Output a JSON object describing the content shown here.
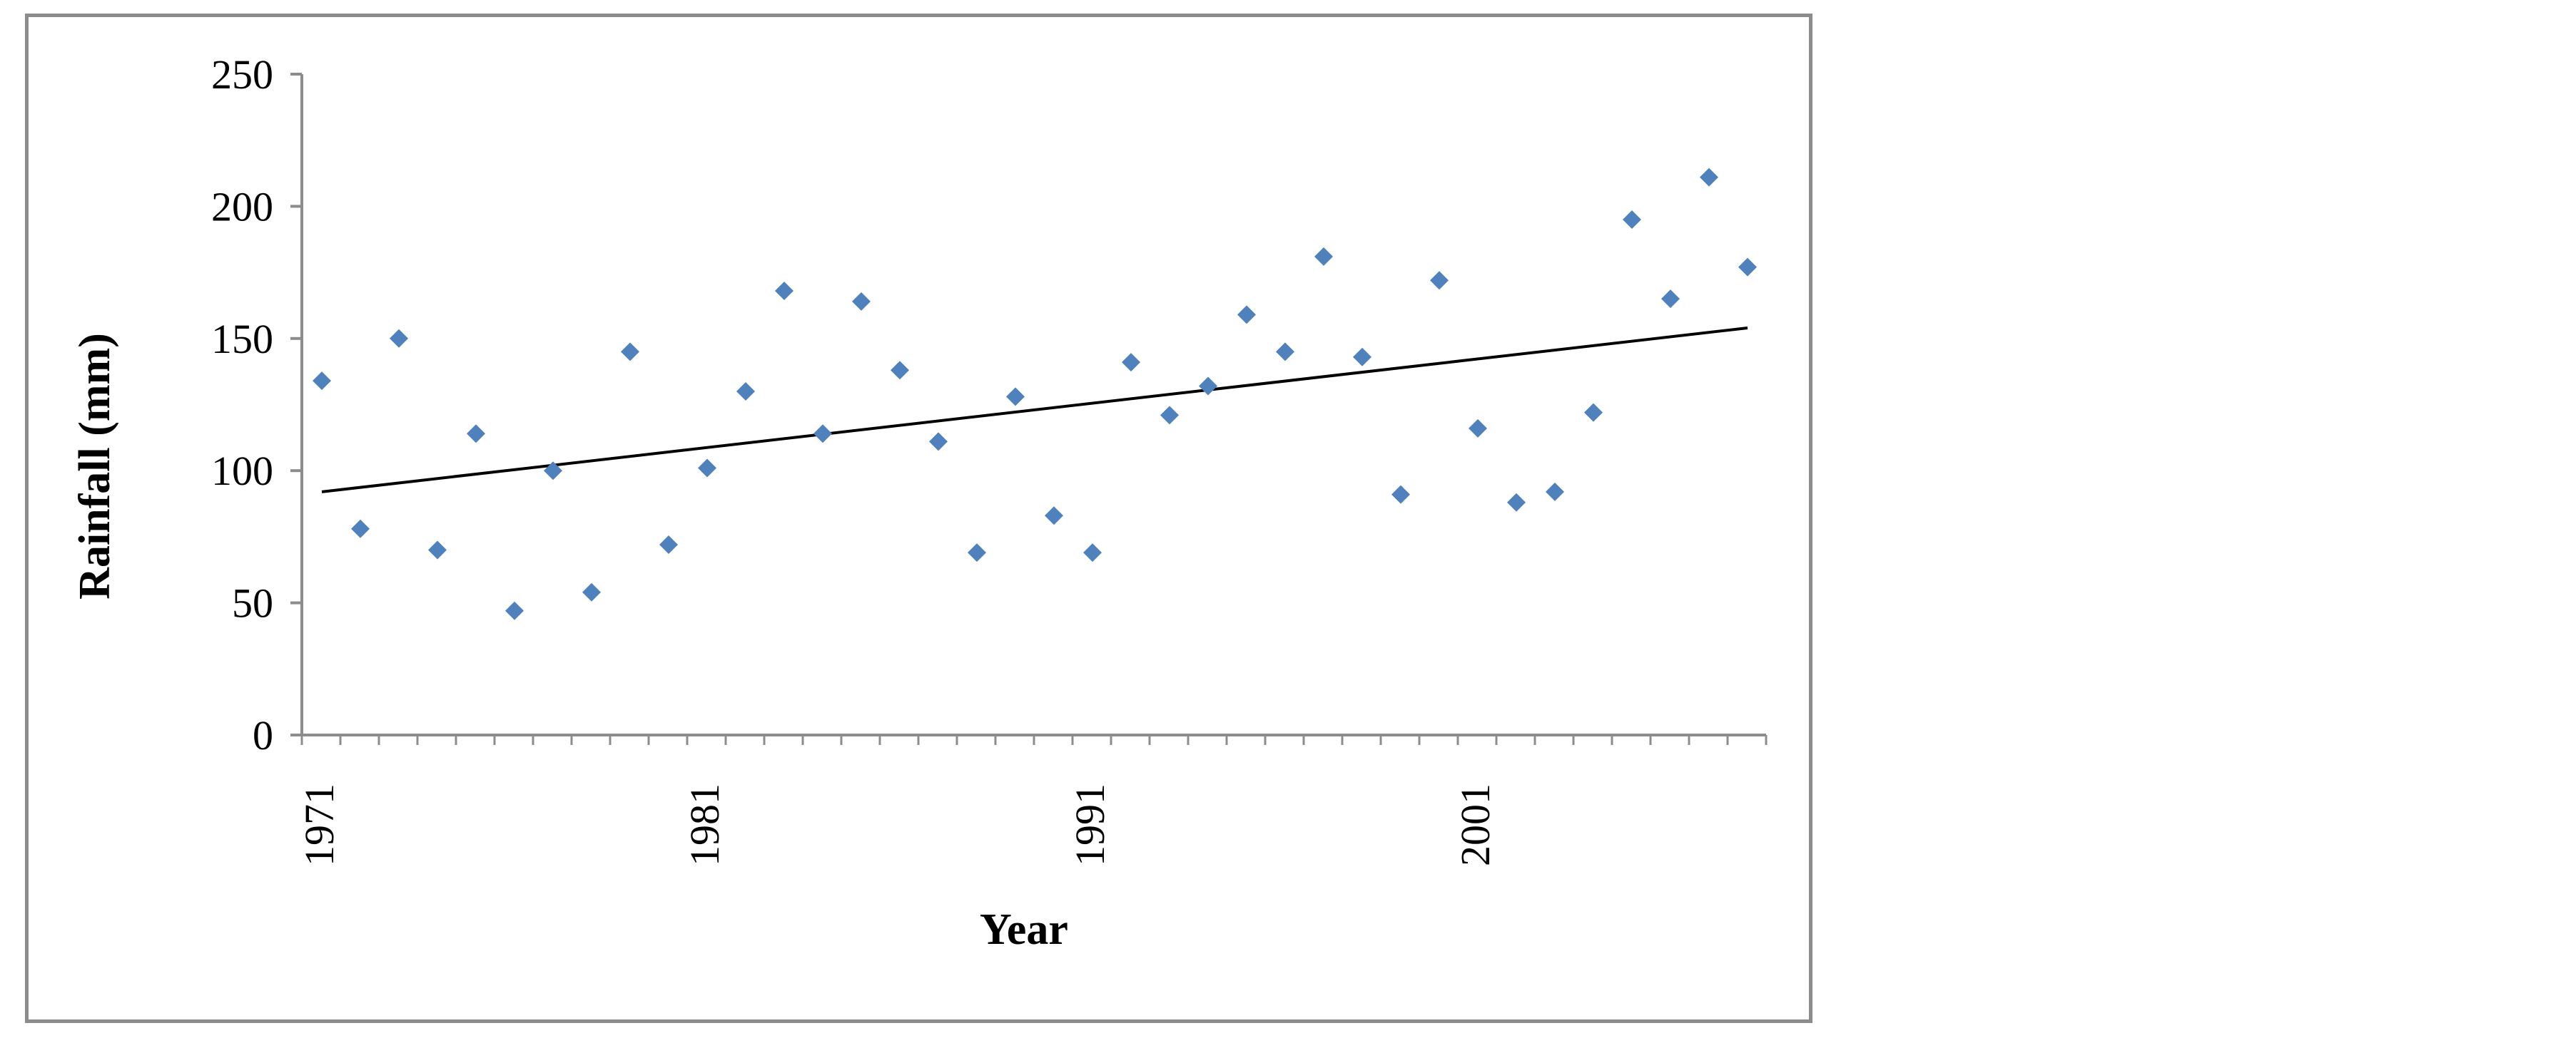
{
  "chart_data": {
    "type": "scatter",
    "title": "",
    "xlabel": "Year",
    "ylabel": "Rainfall (mm)",
    "ylim": [
      0,
      250
    ],
    "xlim": [
      1971,
      2007
    ],
    "y_ticks": [
      "0",
      "50",
      "100",
      "150",
      "200",
      "250"
    ],
    "x_ticks": [
      "1971",
      "1981",
      "1991",
      "2001"
    ],
    "grid": false,
    "legend": "none",
    "colors": {
      "points": "#4f81bd",
      "trendline": "#000000",
      "axis": "#8c8c8c",
      "frame": "#8c8c8c"
    },
    "series": [
      {
        "x": [
          1971,
          1972,
          1973,
          1974,
          1975,
          1976,
          1977,
          1978,
          1979,
          1980,
          1981,
          1982,
          1983,
          1984,
          1985,
          1986,
          1987,
          1988,
          1989,
          1990,
          1991,
          1992,
          1993,
          1994,
          1995,
          1996,
          1997,
          1998,
          1999,
          2000,
          2001,
          2002,
          2003,
          2004,
          2005,
          2006,
          2007,
          2008
        ],
        "values": [
          134,
          78,
          150,
          70,
          114,
          47,
          100,
          54,
          145,
          72,
          101,
          130,
          168,
          114,
          164,
          138,
          111,
          69,
          128,
          83,
          69,
          141,
          121,
          132,
          159,
          145,
          181,
          143,
          91,
          172,
          116,
          88,
          92,
          122,
          195,
          165,
          211,
          177
        ]
      }
    ],
    "trendline": {
      "x": [
        1971,
        2008
      ],
      "values": [
        92,
        154
      ]
    }
  }
}
